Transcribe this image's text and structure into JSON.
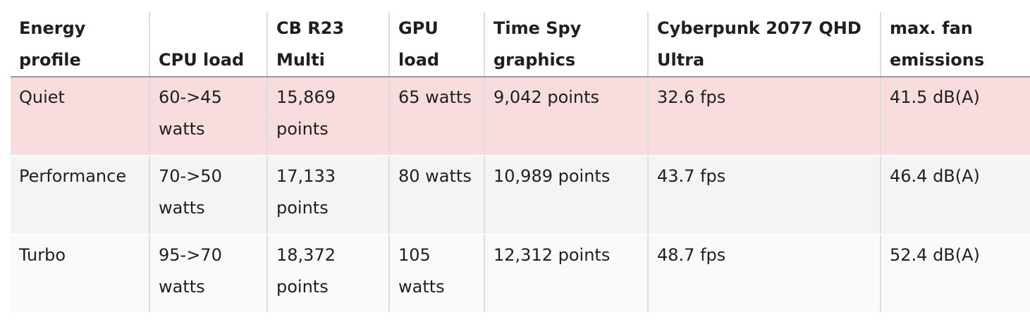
{
  "table": {
    "headers": [
      "Energy profile",
      "CPU load",
      "CB R23 Multi",
      "GPU load",
      "Time Spy graphics",
      "Cyberpunk 2077 QHD Ultra",
      "max. fan emissions"
    ],
    "rows": [
      {
        "profile": "Quiet",
        "cpu_load": "60->45 watts",
        "cb_r23": "15,869 points",
        "gpu_load": "65 watts",
        "time_spy": "9,042 points",
        "cyberpunk": "32.6 fps",
        "fan": "41.5 dB(A)"
      },
      {
        "profile": "Performance",
        "cpu_load": "70->50 watts",
        "cb_r23": "17,133 points",
        "gpu_load": "80 watts",
        "time_spy": "10,989 points",
        "cyberpunk": "43.7 fps",
        "fan": "46.4 dB(A)"
      },
      {
        "profile": "Turbo",
        "cpu_load": "95->70 watts",
        "cb_r23": "18,372 points",
        "gpu_load": "105 watts",
        "time_spy": "12,312 points",
        "cyberpunk": "48.7 fps",
        "fan": "52.4 dB(A)"
      }
    ]
  },
  "colors": {
    "quiet_row": "#f9dcdd",
    "performance_row": "#f4f4f4",
    "turbo_row": "#fafafa"
  }
}
